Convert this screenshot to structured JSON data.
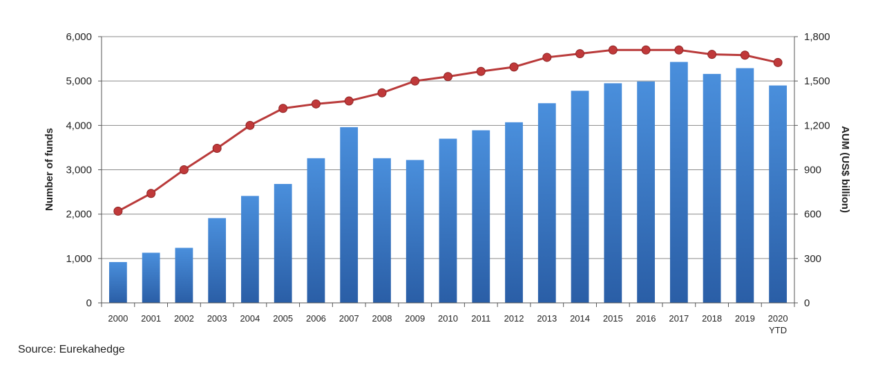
{
  "source": "Source: Eurekahedge",
  "colors": {
    "bar_light": "#4a8fdc",
    "bar_dark": "#2a5ea6",
    "line": "#b93a3a",
    "marker": "#c0393a",
    "grid": "#8a8a8a",
    "axis": "#555555"
  },
  "chart_data": {
    "type": "bar",
    "categories": [
      "2000",
      "2001",
      "2002",
      "2003",
      "2004",
      "2005",
      "2006",
      "2007",
      "2008",
      "2009",
      "2010",
      "2011",
      "2012",
      "2013",
      "2014",
      "2015",
      "2016",
      "2017",
      "2018",
      "2019",
      "2020"
    ],
    "category_sublabels": {
      "20": "YTD"
    },
    "series": [
      {
        "type": "bar",
        "axis": "left",
        "values": [
          920,
          1130,
          1240,
          1910,
          2410,
          2680,
          3260,
          3960,
          3260,
          3220,
          3700,
          3890,
          4070,
          4500,
          4780,
          4950,
          4990,
          5430,
          5160,
          5290,
          4900
        ]
      },
      {
        "type": "line",
        "axis": "right",
        "values": [
          620,
          740,
          900,
          1045,
          1200,
          1315,
          1345,
          1365,
          1420,
          1500,
          1530,
          1565,
          1595,
          1660,
          1685,
          1710,
          1710,
          1710,
          1680,
          1675,
          1625
        ]
      }
    ],
    "y_left": {
      "label": "Number of funds",
      "ylim": [
        0,
        6000
      ],
      "ticks": [
        0,
        1000,
        2000,
        3000,
        4000,
        5000,
        6000
      ],
      "tick_labels": [
        "0",
        "1,000",
        "2,000",
        "3,000",
        "4,000",
        "5,000",
        "6,000"
      ]
    },
    "y_right": {
      "label": "AUM (US$ billion)",
      "ylim": [
        0,
        1800
      ],
      "ticks": [
        0,
        300,
        600,
        900,
        1200,
        1500,
        1800
      ],
      "tick_labels": [
        "0",
        "300",
        "600",
        "900",
        "1,200",
        "1,500",
        "1,800"
      ]
    },
    "grid": true
  }
}
